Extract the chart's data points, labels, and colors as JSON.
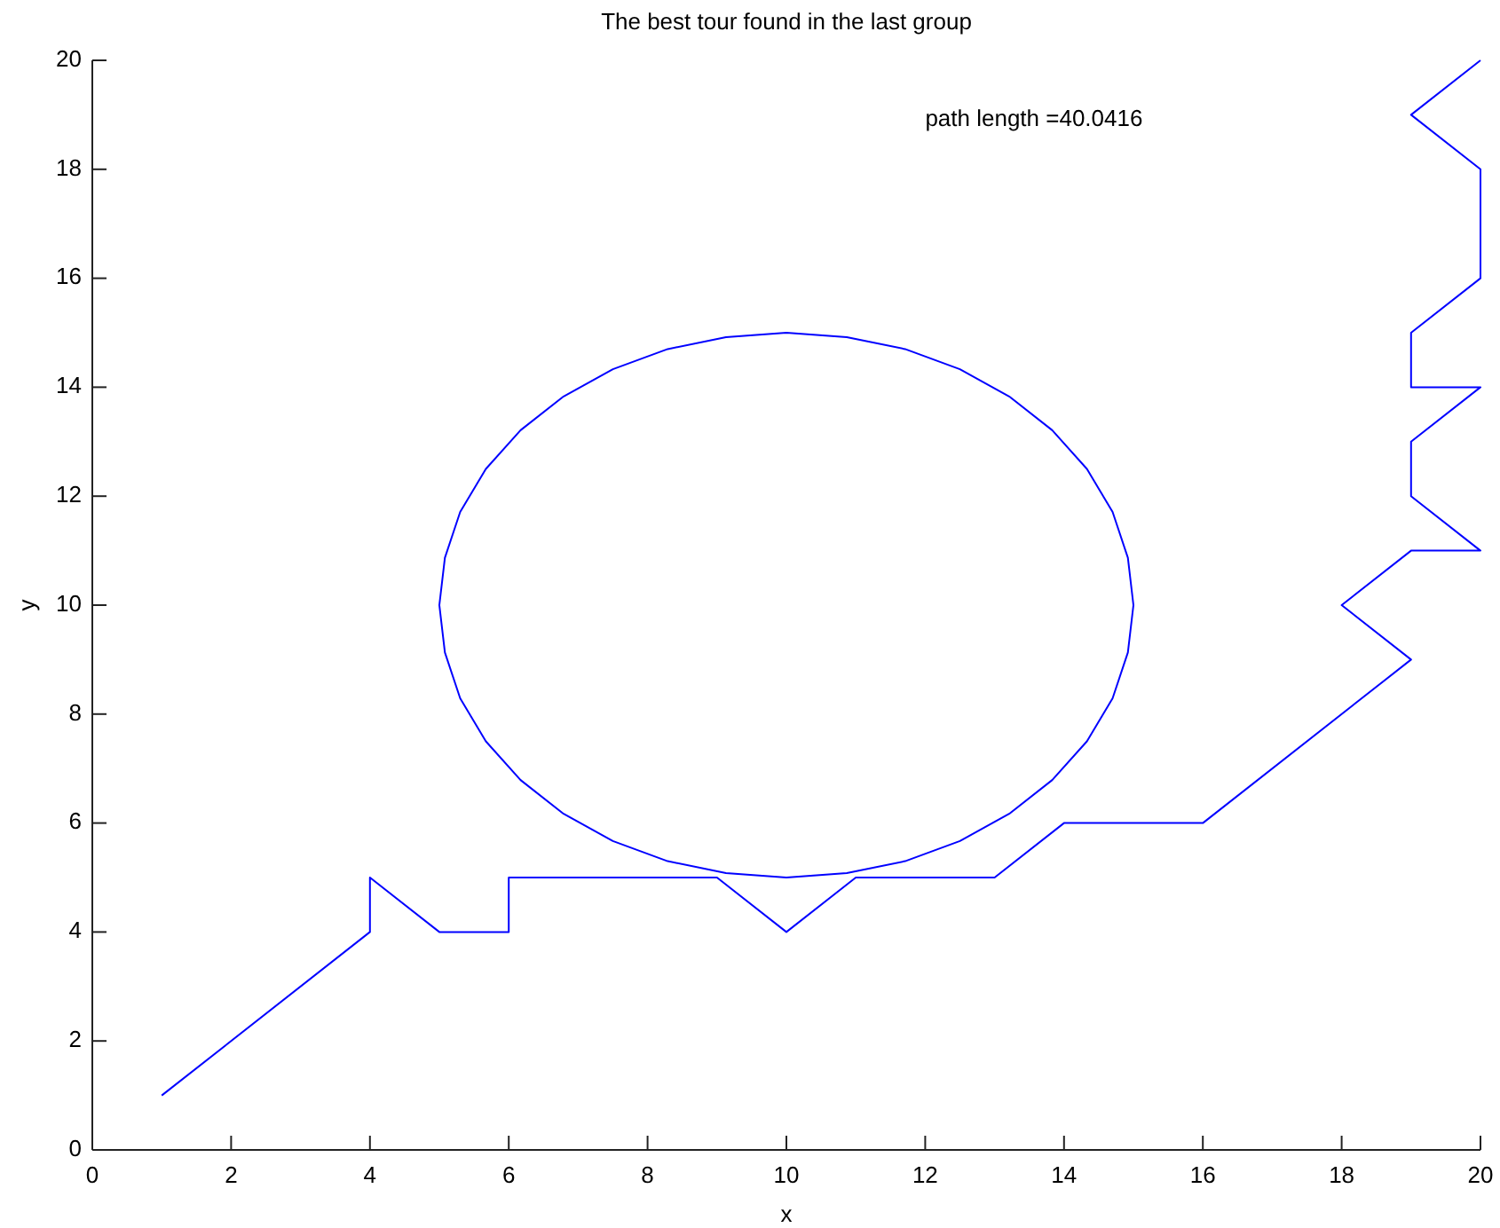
{
  "chart_data": {
    "type": "line",
    "title": "The best tour found in the last group",
    "xlabel": "x",
    "ylabel": "y",
    "annotations": [
      "path length =40.0416"
    ],
    "xlim": [
      0,
      20
    ],
    "ylim": [
      0,
      20
    ],
    "xticks": [
      0,
      2,
      4,
      6,
      8,
      10,
      12,
      14,
      16,
      18,
      20
    ],
    "yticks": [
      0,
      2,
      4,
      6,
      8,
      10,
      12,
      14,
      16,
      18,
      20
    ],
    "series": [
      {
        "color": "#0000ff",
        "x": [
          1,
          4,
          4,
          5,
          6,
          6,
          9,
          10,
          11,
          13,
          14,
          16,
          19,
          18,
          19,
          20,
          19,
          19,
          20,
          19,
          19,
          20,
          20,
          19,
          20
        ],
        "values": [
          1,
          4,
          5,
          4,
          4,
          5,
          5,
          4,
          5,
          5,
          6,
          6,
          9,
          10,
          11,
          11,
          12,
          13,
          14,
          14,
          15,
          16,
          18,
          19,
          20
        ]
      },
      {
        "color": "#0000ff",
        "x": [
          15,
          14.92,
          14.7,
          14.33,
          13.83,
          13.21,
          12.5,
          11.71,
          10.87,
          10,
          9.13,
          8.29,
          7.5,
          6.79,
          6.17,
          5.67,
          5.3,
          5.08,
          5,
          5.08,
          5.3,
          5.67,
          6.17,
          6.79,
          7.5,
          8.29,
          9.13,
          10,
          10.87,
          11.71,
          12.5,
          13.21,
          13.83,
          14.33,
          14.7,
          14.92,
          15,
          14.92
        ],
        "values": [
          10,
          10.87,
          11.71,
          12.5,
          13.21,
          13.83,
          14.33,
          14.7,
          14.92,
          15,
          14.92,
          14.7,
          14.33,
          13.83,
          13.21,
          12.5,
          11.71,
          10.87,
          10,
          9.13,
          8.29,
          7.5,
          6.79,
          6.17,
          5.67,
          5.3,
          5.08,
          5,
          5.08,
          5.3,
          5.67,
          6.17,
          6.79,
          7.5,
          8.29,
          9.13,
          10,
          10.87
        ]
      }
    ]
  }
}
